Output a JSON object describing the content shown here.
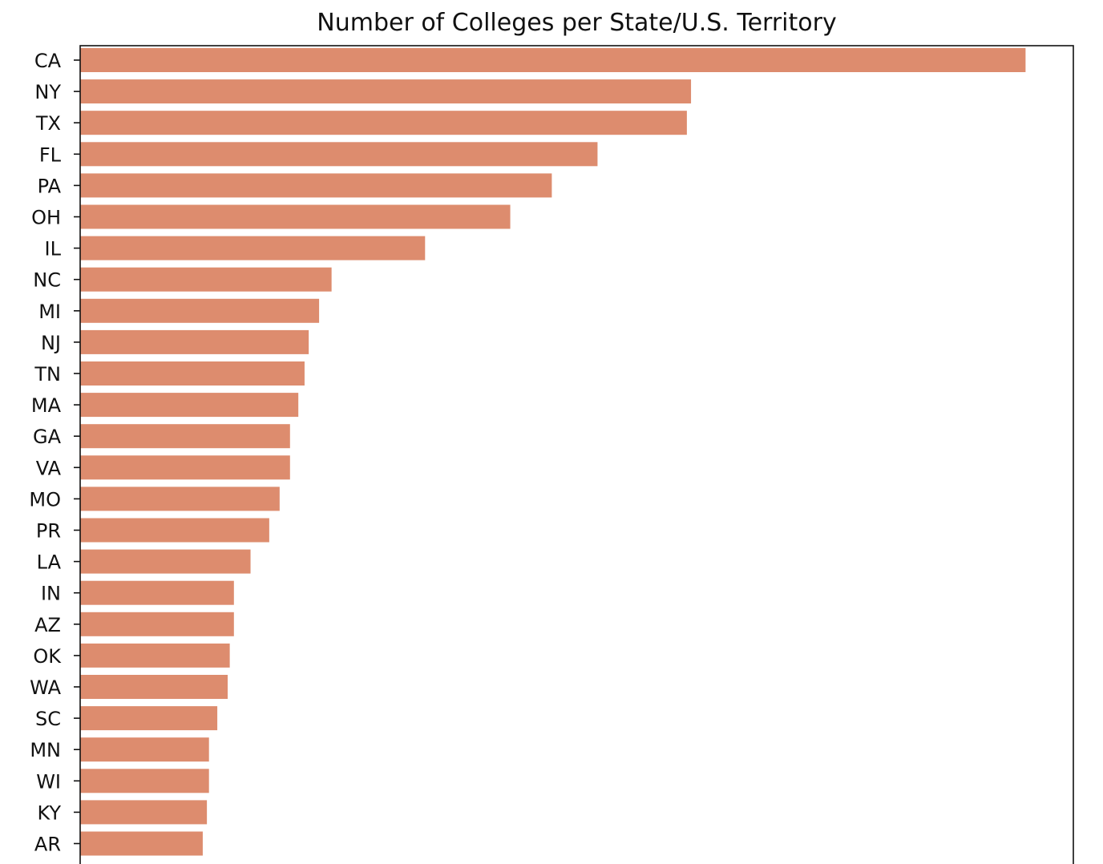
{
  "chart_data": {
    "type": "bar",
    "orientation": "horizontal",
    "title": "Number of Colleges per State/U.S. Territory",
    "xlabel": "",
    "ylabel": "",
    "categories": [
      "CA",
      "NY",
      "TX",
      "FL",
      "PA",
      "OH",
      "IL",
      "NC",
      "MI",
      "NJ",
      "TN",
      "MA",
      "GA",
      "VA",
      "MO",
      "PR",
      "LA",
      "IN",
      "AZ",
      "OK",
      "WA",
      "SC",
      "MN",
      "WI",
      "KY",
      "AR"
    ],
    "values": [
      455,
      294,
      292,
      249,
      227,
      207,
      166,
      121,
      115,
      110,
      108,
      105,
      101,
      101,
      96,
      91,
      82,
      74,
      74,
      72,
      71,
      66,
      62,
      62,
      61,
      59
    ],
    "xlim": [
      0,
      478
    ],
    "bar_color": "#dd8c6e",
    "grid": false,
    "legend": "none"
  }
}
